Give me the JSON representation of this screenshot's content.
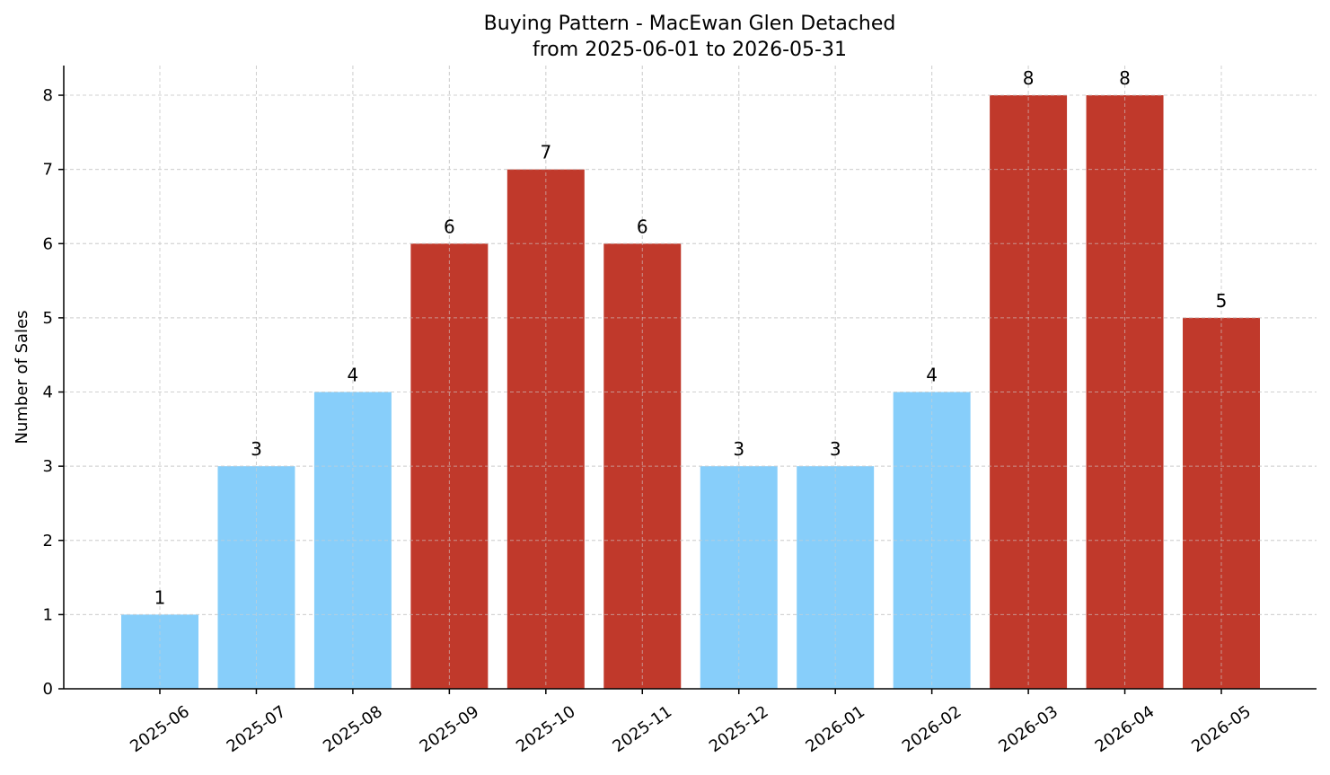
{
  "chart_data": {
    "type": "bar",
    "title": "Buying Pattern - MacEwan Glen Detached",
    "subtitle": "from 2025-06-01 to 2026-05-31",
    "xlabel": "",
    "ylabel": "Number of Sales",
    "categories": [
      "2025-06",
      "2025-07",
      "2025-08",
      "2025-09",
      "2025-10",
      "2025-11",
      "2025-12",
      "2026-01",
      "2026-02",
      "2026-03",
      "2026-04",
      "2026-05"
    ],
    "values": [
      1,
      3,
      4,
      6,
      7,
      6,
      3,
      3,
      4,
      8,
      8,
      5
    ],
    "highlight": [
      false,
      false,
      false,
      true,
      true,
      true,
      false,
      false,
      false,
      true,
      true,
      true
    ],
    "ylim": [
      0,
      8.4
    ],
    "yticks": [
      0,
      1,
      2,
      3,
      4,
      5,
      6,
      7,
      8
    ],
    "grid": true,
    "colors": {
      "normal": "#87CEFA",
      "highlight": "#C0392B"
    }
  }
}
